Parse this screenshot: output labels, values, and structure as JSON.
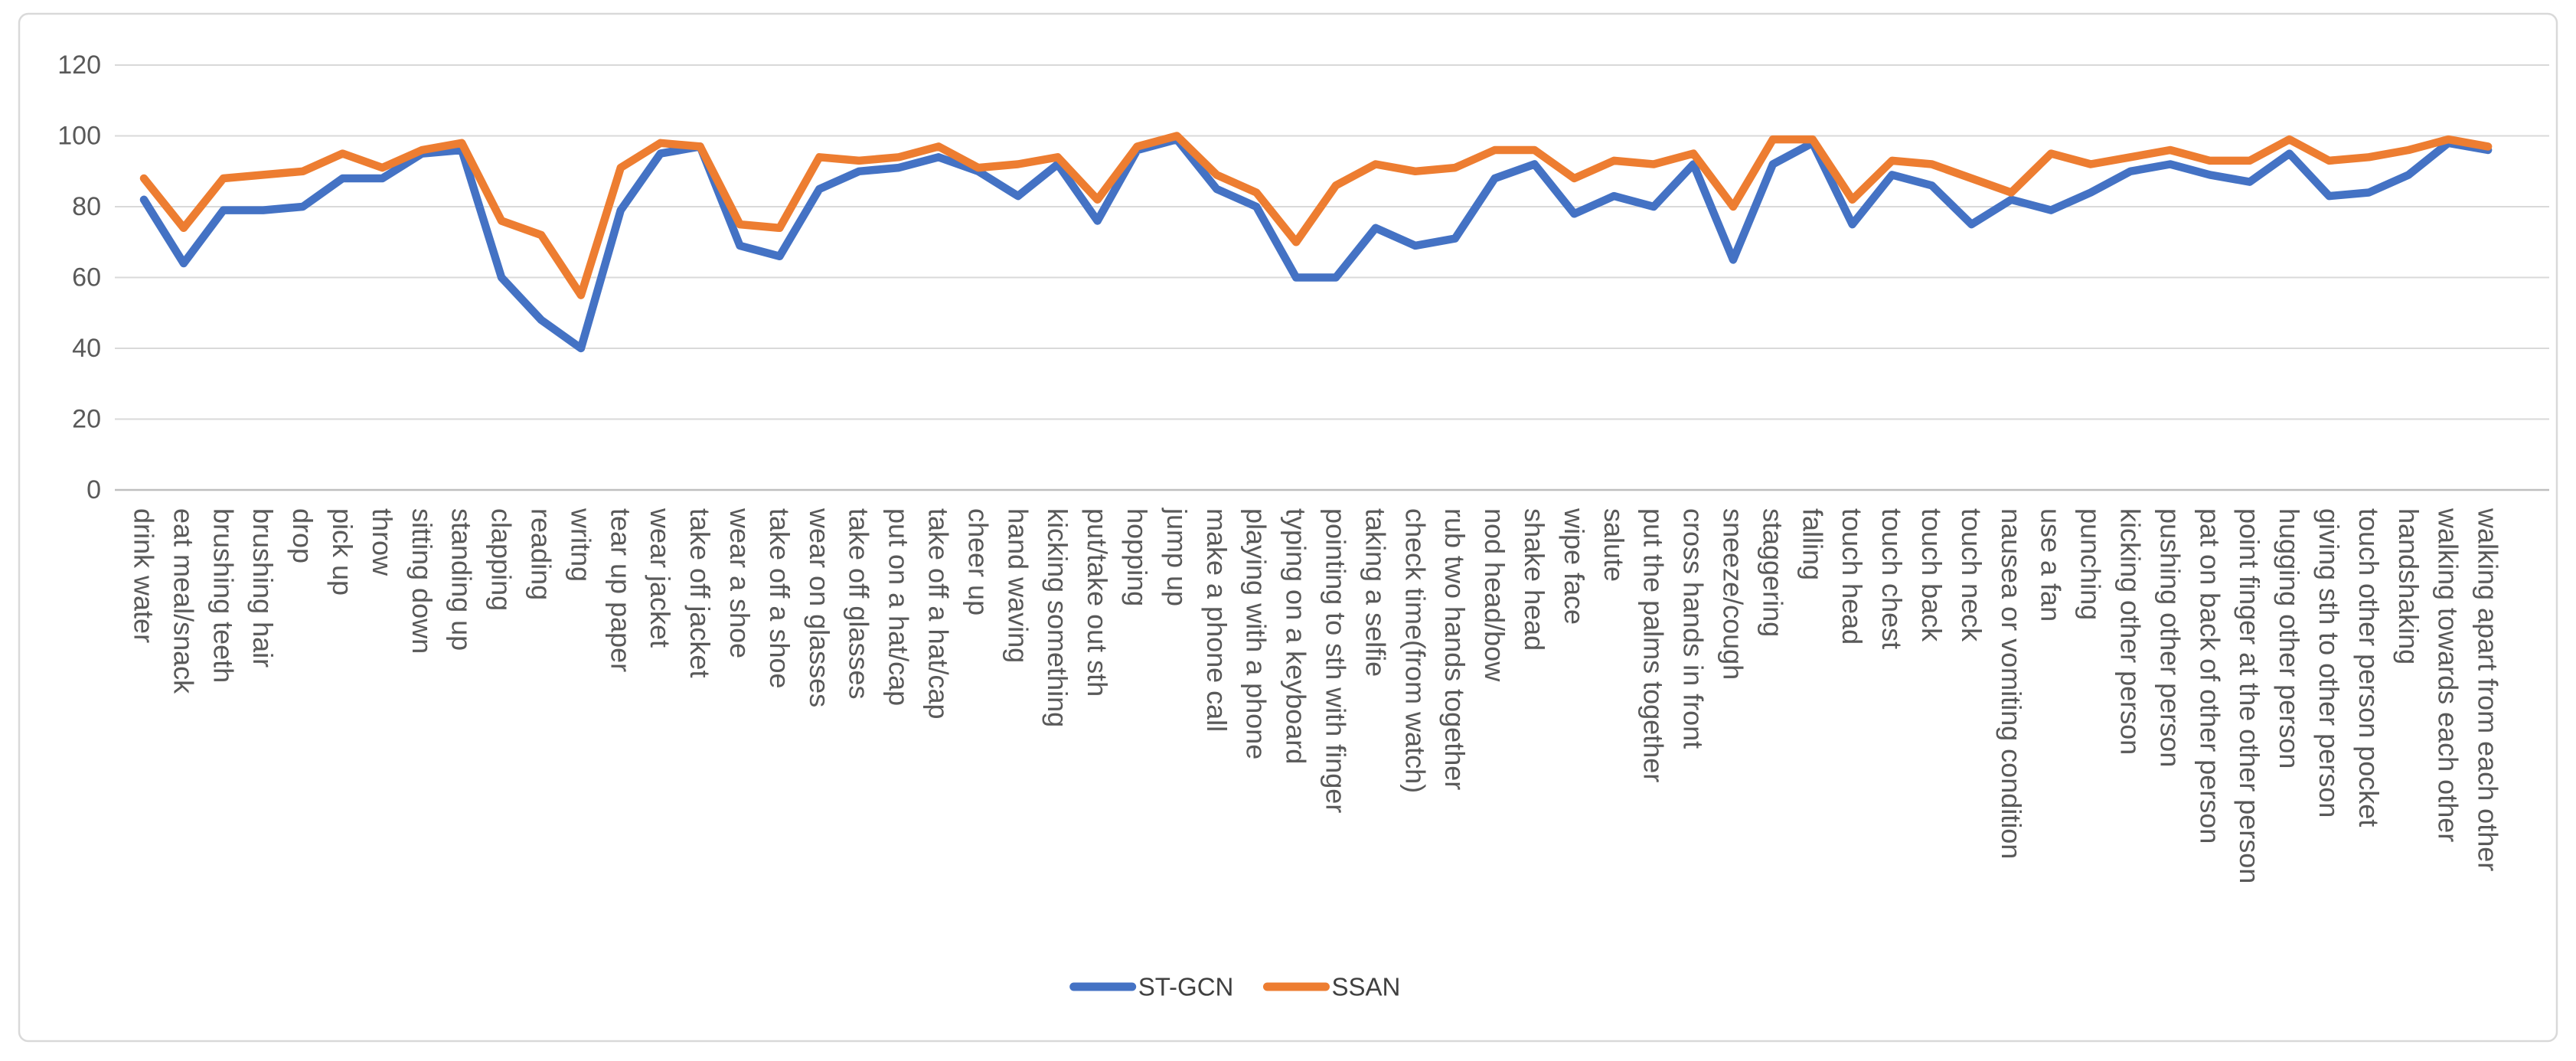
{
  "chart_data": {
    "type": "line",
    "title": "",
    "xlabel": "",
    "ylabel": "",
    "ylim": [
      0,
      120
    ],
    "yticks": [
      0,
      20,
      40,
      60,
      80,
      100,
      120
    ],
    "grid": true,
    "legend_position": "bottom-center",
    "axis_text_color": "#595959",
    "gridline_color": "#D9D9D9",
    "axis_line_color": "#BFBFBF",
    "border_color": "#D9D9D9",
    "categories": [
      "drink water",
      "eat meal/snack",
      "brushing teeth",
      "brushing hair",
      "drop",
      "pick up",
      "throw",
      "sitting down",
      "standing up",
      "clapping",
      "reading",
      "writng",
      "tear up paper",
      "wear jacket",
      "take off jacket",
      "wear a shoe",
      "take off a shoe",
      "wear on glasses",
      "take off glasses",
      "put on a hat/cap",
      "take off a hat/cap",
      "cheer up",
      "hand waving",
      "kicking something",
      "put/take out sth",
      "hopping",
      "jump up",
      "make a phone call",
      "playing with a phone",
      "typing on a keyboard",
      "pointing to sth with finger",
      "taking a selfie",
      "check time(from watch)",
      "rub two hands together",
      "nod head/bow",
      "shake head",
      "wipe face",
      "salute",
      "put the palms together",
      "cross hands in front",
      "sneeze/cough",
      "staggering",
      "falling",
      "touch head",
      "touch chest",
      "touch back",
      "touch neck",
      "nausea or vomiting condition",
      "use a fan",
      "punching",
      "kicking other person",
      "pushing other person",
      "pat on back of other person",
      "point finger at the other person",
      "hugging other person",
      "giving sth to other person",
      "touch other person pocket",
      "handshaking",
      "walking towards each other",
      "walking apart from each other"
    ],
    "series": [
      {
        "name": "ST-GCN",
        "color": "#4472C4",
        "values": [
          82,
          64,
          79,
          79,
          80,
          88,
          88,
          95,
          96,
          60,
          48,
          40,
          79,
          95,
          97,
          69,
          66,
          85,
          90,
          91,
          94,
          90,
          83,
          92,
          76,
          96,
          99,
          85,
          80,
          60,
          60,
          74,
          69,
          71,
          88,
          92,
          78,
          83,
          80,
          92,
          65,
          92,
          98,
          75,
          89,
          86,
          75,
          82,
          79,
          84,
          90,
          92,
          89,
          87,
          95,
          83,
          84,
          89,
          98,
          96
        ]
      },
      {
        "name": "SSAN",
        "color": "#ED7D31",
        "values": [
          88,
          74,
          88,
          89,
          90,
          95,
          91,
          96,
          98,
          76,
          72,
          55,
          91,
          98,
          97,
          75,
          74,
          94,
          93,
          94,
          97,
          91,
          92,
          94,
          82,
          97,
          100,
          89,
          84,
          70,
          86,
          92,
          90,
          91,
          96,
          96,
          88,
          93,
          92,
          95,
          80,
          99,
          99,
          82,
          93,
          92,
          88,
          84,
          95,
          92,
          94,
          96,
          93,
          93,
          99,
          93,
          94,
          96,
          99,
          97
        ]
      }
    ]
  }
}
